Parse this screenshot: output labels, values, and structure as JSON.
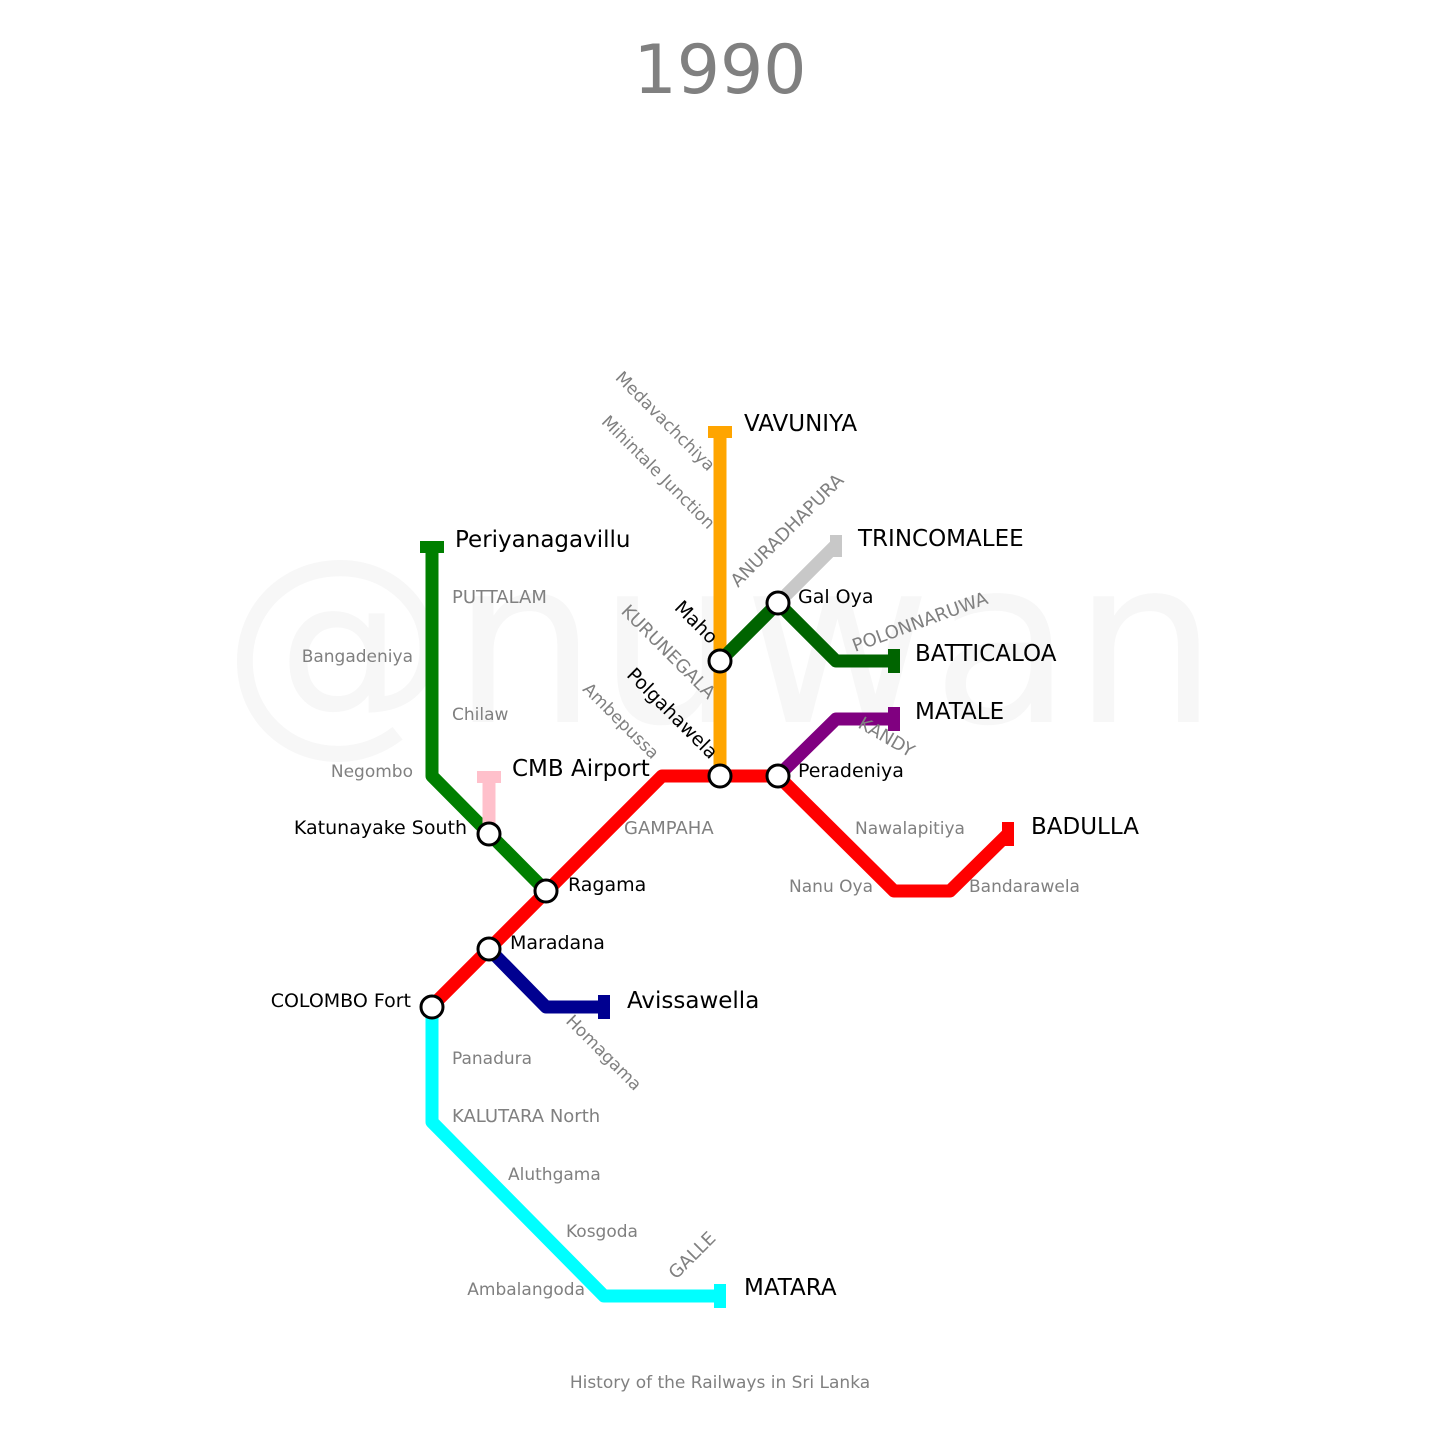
{
  "title": "1990",
  "watermark": "@nuwan",
  "footer": "History of the Railways in Sri Lanka",
  "colors": {
    "main_line": "#ff0000",
    "northern_line": "#ffa500",
    "puttalam_line": "#007f00",
    "batticaloa_line": "#006400",
    "trincomalee_line": "#c8c8c8",
    "matale_line": "#800080",
    "airport_line": "#ffc0cb",
    "kelani_valley_line": "#000090",
    "coastal_line": "#00ffff"
  },
  "terminals": {
    "vavuniya": "VAVUNIYA",
    "periyanagavillu": "Periyanagavillu",
    "trincomalee": "TRINCOMALEE",
    "batticaloa": "BATTICALOA",
    "matale": "MATALE",
    "cmb_airport": "CMB Airport",
    "badulla": "BADULLA",
    "avissawella": "Avissawella",
    "matara": "MATARA"
  },
  "stations": {
    "gal_oya": "Gal Oya",
    "maho": "Maho",
    "polgahawela": "Polgahawela",
    "peradeniya": "Peradeniya",
    "katunayake_south": "Katunayake South",
    "ragama": "Ragama",
    "maradana": "Maradana",
    "colombo_fort": "COLOMBO Fort"
  },
  "towns": {
    "medavachchiya": "Medavachchiya",
    "mihintale_junction": "Mihintale Junction",
    "anuradhapura": "ANURADHAPURA",
    "puttalam": "PUTTALAM",
    "polonnaruwa": "POLONNARUWA",
    "kurunegala": "KURUNEGALA",
    "bangadeniya": "Bangadeniya",
    "chilaw": "Chilaw",
    "ambepussa": "Ambepussa",
    "kandy": "KANDY",
    "negombo": "Negombo",
    "gampaha": "GAMPAHA",
    "nawalapitiya": "Nawalapitiya",
    "nanu_oya": "Nanu Oya",
    "bandarawela": "Bandarawela",
    "homagama": "Homagama",
    "panadura": "Panadura",
    "kalutara_north": "KALUTARA North",
    "aluthgama": "Aluthgama",
    "kosgoda": "Kosgoda",
    "ambalangoda": "Ambalangoda",
    "galle": "GALLE"
  }
}
